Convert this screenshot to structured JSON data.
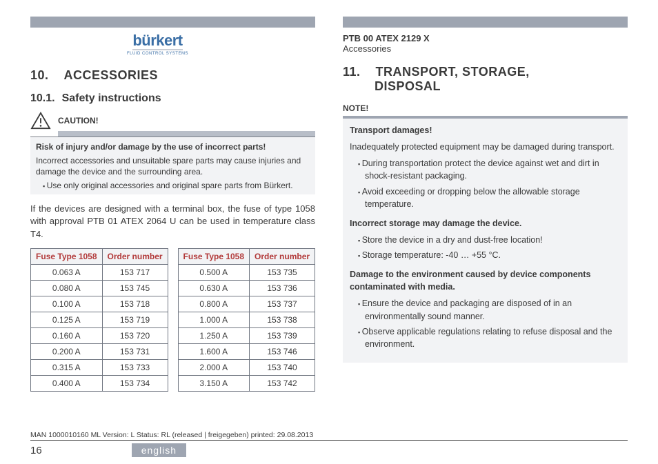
{
  "logo": {
    "brand": "bürkert",
    "tagline": "FLUID CONTROL SYSTEMS"
  },
  "doc": {
    "id": "PTB 00 ATEX 2129 X",
    "section": "Accessories"
  },
  "left": {
    "h1_num": "10.",
    "h1": "ACCESSORIES",
    "h2_num": "10.1.",
    "h2": "Safety instructions",
    "caution_label": "CAUTION!",
    "caution_title": "Risk of injury and/or damage by the use of incorrect parts!",
    "caution_body": "Incorrect accessories and unsuitable spare parts may cause injuries and damage the device and the surrounding area.",
    "caution_item": "Use only original accessories and original spare parts from Bürkert.",
    "para": "If the devices are designed with a terminal box, the fuse of type 1058 with approval PTB 01 ATEX 2064 U can be used in temperature class T4.",
    "table_headers": {
      "c1": "Fuse Type 1058",
      "c2": "Order number"
    },
    "table_a": [
      [
        "0.063 A",
        "153 717"
      ],
      [
        "0.080 A",
        "153 745"
      ],
      [
        "0.100 A",
        "153 718"
      ],
      [
        "0.125 A",
        "153 719"
      ],
      [
        "0.160 A",
        "153 720"
      ],
      [
        "0.200 A",
        "153 731"
      ],
      [
        "0.315 A",
        "153 733"
      ],
      [
        "0.400 A",
        "153 734"
      ]
    ],
    "table_b": [
      [
        "0.500 A",
        "153 735"
      ],
      [
        "0.630 A",
        "153 736"
      ],
      [
        "0.800 A",
        "153 737"
      ],
      [
        "1.000 A",
        "153 738"
      ],
      [
        "1.250 A",
        "153 739"
      ],
      [
        "1.600 A",
        "153 746"
      ],
      [
        "2.000 A",
        "153 740"
      ],
      [
        "3.150 A",
        "153 742"
      ]
    ]
  },
  "right": {
    "h1_num": "11.",
    "h1_line1": "TRANSPORT, STORAGE,",
    "h1_line2": "DISPOSAL",
    "note_label": "NOTE!",
    "block1_title": "Transport damages!",
    "block1_body": "Inadequately protected equipment may be damaged during transport.",
    "block1_items": [
      "During transportation protect the device against wet and dirt in shock-resistant packaging.",
      "Avoid exceeding or dropping below the allowable storage temperature."
    ],
    "block2_title": "Incorrect storage may damage the device.",
    "block2_items": [
      "Store the device in a dry and dust-free location!",
      "Storage temperature: -40 … +55 °C."
    ],
    "block3_title": "Damage to the environment caused by device components contaminated with media.",
    "block3_items": [
      "Ensure the device and packaging are disposed of in an environmentally sound manner.",
      "Observe applicable regulations relating to refuse disposal and the environment."
    ]
  },
  "footer": {
    "meta": "MAN 1000010160 ML Version: L Status: RL (released | freigegeben) printed: 29.08.2013",
    "page": "16",
    "lang": "english"
  },
  "colors": {
    "accent_gray": "#9ea5b1",
    "table_header_text": "#b23a3a",
    "logo_blue": "#3a6ea5"
  }
}
